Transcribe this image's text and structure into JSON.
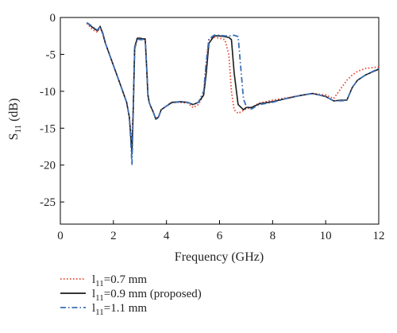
{
  "chart_data": {
    "type": "line",
    "xlabel": "Frequency (GHz)",
    "ylabel": "S",
    "ylabel_sub": "11",
    "ylabel_unit": " (dB)",
    "xlim": [
      0,
      12
    ],
    "ylim": [
      -28,
      0
    ],
    "x_ticks": [
      0,
      2,
      4,
      6,
      8,
      10,
      12
    ],
    "y_ticks": [
      0,
      -5,
      -10,
      -15,
      -20,
      -25
    ],
    "grid": false,
    "legend_position": "bottom-left, below plot",
    "series": [
      {
        "legend_main": "l",
        "legend_sub": "11",
        "legend_rest": "=0.7 mm",
        "color": "#e8432f",
        "style": "dotted",
        "x": [
          1.0,
          1.2,
          1.4,
          1.5,
          1.6,
          1.7,
          1.9,
          2.1,
          2.3,
          2.5,
          2.6,
          2.65,
          2.7,
          2.75,
          2.8,
          2.9,
          3.0,
          3.1,
          3.2,
          3.25,
          3.3,
          3.35,
          3.4,
          3.5,
          3.6,
          3.7,
          3.8,
          4.0,
          4.2,
          4.5,
          4.8,
          5.0,
          5.2,
          5.4,
          5.5,
          5.6,
          5.8,
          6.0,
          6.2,
          6.35,
          6.45,
          6.55,
          6.7,
          6.9,
          7.0,
          7.2,
          7.5,
          8.0,
          8.5,
          9.0,
          9.5,
          10.0,
          10.3,
          10.6,
          10.8,
          11.0,
          11.2,
          11.5,
          12.0
        ],
        "y": [
          -0.8,
          -1.6,
          -2.0,
          -1.3,
          -2.3,
          -3.5,
          -5.5,
          -7.5,
          -9.5,
          -11.5,
          -13.5,
          -15.5,
          -17.0,
          -12.0,
          -4.5,
          -3.0,
          -2.9,
          -3.0,
          -3.0,
          -6.5,
          -10.5,
          -11.5,
          -12.0,
          -12.8,
          -13.7,
          -13.5,
          -12.5,
          -12.0,
          -11.5,
          -11.5,
          -11.6,
          -12.2,
          -11.8,
          -10.5,
          -6.0,
          -3.0,
          -2.7,
          -2.8,
          -3.0,
          -5.0,
          -10.0,
          -12.5,
          -13.0,
          -12.6,
          -12.4,
          -12.2,
          -11.6,
          -11.2,
          -10.9,
          -10.6,
          -10.3,
          -10.5,
          -11.0,
          -9.5,
          -8.5,
          -7.8,
          -7.3,
          -6.9,
          -6.7
        ]
      },
      {
        "legend_main": "l",
        "legend_sub": "11",
        "legend_rest": "=0.9 mm (proposed)",
        "color": "#1a1a1a",
        "style": "solid",
        "x": [
          1.0,
          1.2,
          1.4,
          1.5,
          1.6,
          1.7,
          1.9,
          2.1,
          2.3,
          2.5,
          2.6,
          2.65,
          2.7,
          2.75,
          2.8,
          2.9,
          3.0,
          3.1,
          3.2,
          3.25,
          3.3,
          3.35,
          3.4,
          3.5,
          3.6,
          3.7,
          3.8,
          4.0,
          4.2,
          4.5,
          4.8,
          5.0,
          5.2,
          5.4,
          5.5,
          5.6,
          5.8,
          6.0,
          6.2,
          6.35,
          6.45,
          6.55,
          6.7,
          6.9,
          7.0,
          7.2,
          7.5,
          8.0,
          8.5,
          9.0,
          9.5,
          10.0,
          10.3,
          10.6,
          10.8,
          11.0,
          11.2,
          11.5,
          12.0
        ],
        "y": [
          -0.7,
          -1.3,
          -1.8,
          -1.2,
          -2.2,
          -3.5,
          -5.5,
          -7.5,
          -9.5,
          -11.5,
          -13.5,
          -16.0,
          -18.5,
          -12.0,
          -4.0,
          -2.8,
          -2.8,
          -2.9,
          -2.9,
          -6.5,
          -10.5,
          -11.5,
          -12.0,
          -12.8,
          -13.8,
          -13.5,
          -12.5,
          -12.0,
          -11.5,
          -11.4,
          -11.5,
          -11.8,
          -11.5,
          -10.5,
          -7.5,
          -3.5,
          -2.5,
          -2.5,
          -2.6,
          -2.7,
          -3.0,
          -7.5,
          -11.8,
          -12.5,
          -12.2,
          -12.2,
          -11.7,
          -11.4,
          -11.0,
          -10.6,
          -10.3,
          -10.7,
          -11.3,
          -11.2,
          -11.2,
          -9.5,
          -8.5,
          -7.8,
          -7.0
        ]
      },
      {
        "legend_main": "l",
        "legend_sub": "11",
        "legend_rest": "=1.1 mm",
        "color": "#3b6fb6",
        "style": "dashdot",
        "x": [
          1.0,
          1.2,
          1.4,
          1.5,
          1.6,
          1.7,
          1.9,
          2.1,
          2.3,
          2.5,
          2.6,
          2.65,
          2.7,
          2.75,
          2.8,
          2.9,
          3.0,
          3.1,
          3.2,
          3.25,
          3.3,
          3.35,
          3.4,
          3.5,
          3.6,
          3.7,
          3.8,
          4.0,
          4.2,
          4.5,
          4.8,
          5.0,
          5.2,
          5.4,
          5.5,
          5.6,
          5.8,
          6.0,
          6.2,
          6.35,
          6.45,
          6.55,
          6.7,
          6.9,
          7.0,
          7.2,
          7.5,
          8.0,
          8.5,
          9.0,
          9.5,
          10.0,
          10.3,
          10.6,
          10.8,
          11.0,
          11.2,
          11.5,
          12.0
        ],
        "y": [
          -0.7,
          -1.2,
          -1.7,
          -1.2,
          -2.1,
          -3.5,
          -5.5,
          -7.5,
          -9.5,
          -11.5,
          -13.5,
          -16.5,
          -20.0,
          -12.5,
          -4.2,
          -2.9,
          -3.0,
          -3.0,
          -3.0,
          -6.5,
          -10.5,
          -11.5,
          -12.0,
          -12.8,
          -13.8,
          -13.5,
          -12.5,
          -12.0,
          -11.6,
          -11.4,
          -11.5,
          -11.8,
          -11.5,
          -10.0,
          -6.0,
          -2.9,
          -2.4,
          -2.4,
          -2.5,
          -2.5,
          -2.5,
          -2.4,
          -2.6,
          -11.0,
          -12.0,
          -12.4,
          -11.8,
          -11.5,
          -11.0,
          -10.6,
          -10.3,
          -10.7,
          -11.3,
          -11.3,
          -11.2,
          -9.5,
          -8.5,
          -7.8,
          -6.9
        ]
      }
    ]
  }
}
